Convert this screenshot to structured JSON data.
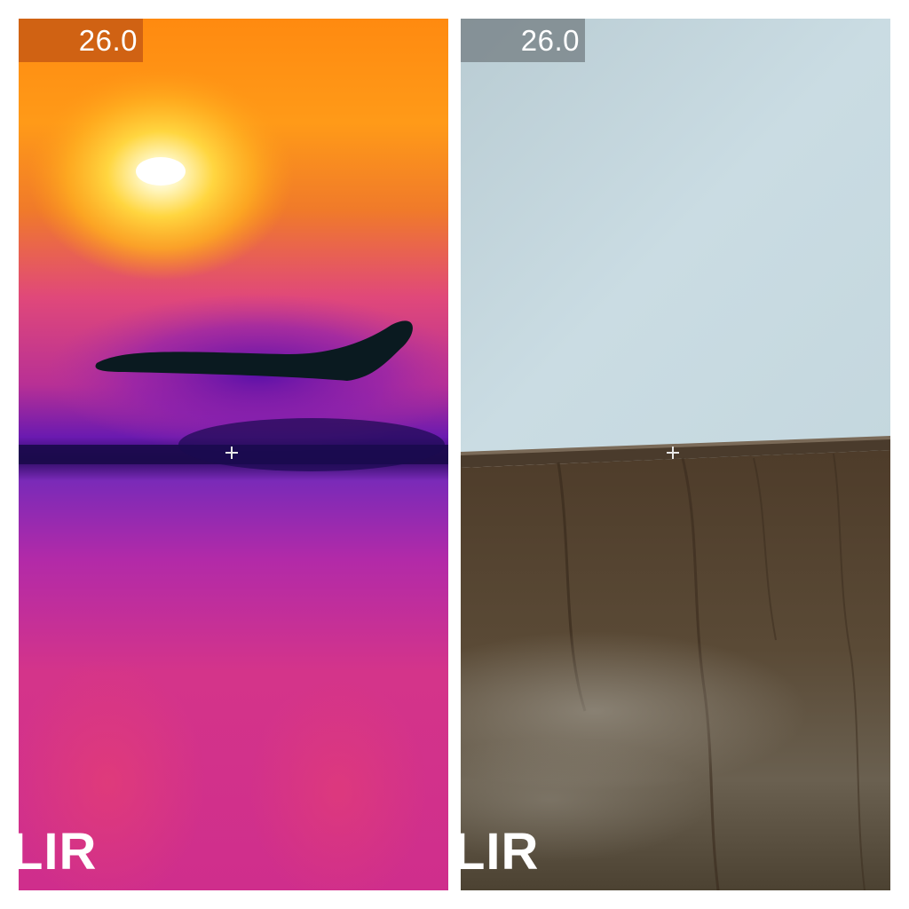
{
  "thermal_panel": {
    "temperature": "26.0",
    "logo": "LIR",
    "palette": {
      "hot": "#fff6d0",
      "warm": "#ff9e0a",
      "mid": "#d6347a",
      "cool": "#6a1ab0",
      "cold": "#0a1a20"
    }
  },
  "visual_panel": {
    "temperature": "26.0",
    "logo": "LIR",
    "colors": {
      "wall": "#c9dbe2",
      "floor": "#5a4a36",
      "trim": "#4a3b2c"
    }
  }
}
